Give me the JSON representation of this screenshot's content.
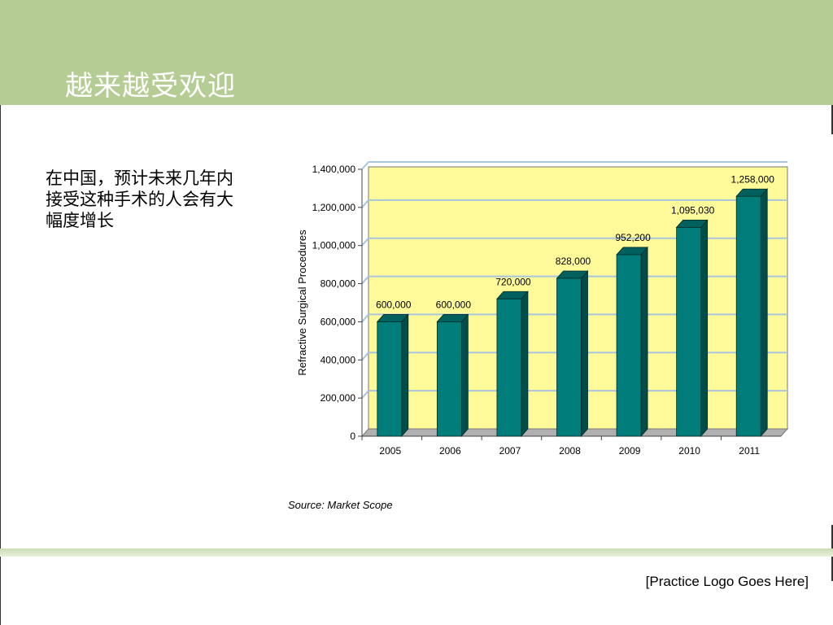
{
  "slide": {
    "title": "越来越受欢迎",
    "body_text": "在中国，预计未来几年内接受这种手术的人会有大幅度增长",
    "footer_logo": "[Practice Logo Goes Here]",
    "source": "Source: Market Scope"
  },
  "colors": {
    "header": "#b5cd94",
    "plot_bg": "#fffa99",
    "bar_front": "#007d7a",
    "bar_side": "#004d4a",
    "bar_top": "#00605d",
    "grid": "#a9c4dc"
  },
  "chart_data": {
    "type": "bar",
    "categories": [
      "2005",
      "2006",
      "2007",
      "2008",
      "2009",
      "2010",
      "2011"
    ],
    "values": [
      600000,
      600000,
      720000,
      828000,
      952200,
      1095030,
      1258000
    ],
    "data_labels": [
      "600,000",
      "600,000",
      "720,000",
      "828,000",
      "952,200",
      "1,095,030",
      "1,258,000"
    ],
    "ylabel": "Refractive Surgical Procedures",
    "xlabel": "",
    "ylim": [
      0,
      1400000
    ],
    "y_ticks": [
      0,
      200000,
      400000,
      600000,
      800000,
      1000000,
      1200000,
      1400000
    ],
    "y_tick_labels": [
      "0",
      "200,000",
      "400,000",
      "600,000",
      "800,000",
      "1,000,000",
      "1,200,000",
      "1,400,000"
    ],
    "grid": true,
    "legend": "none"
  }
}
